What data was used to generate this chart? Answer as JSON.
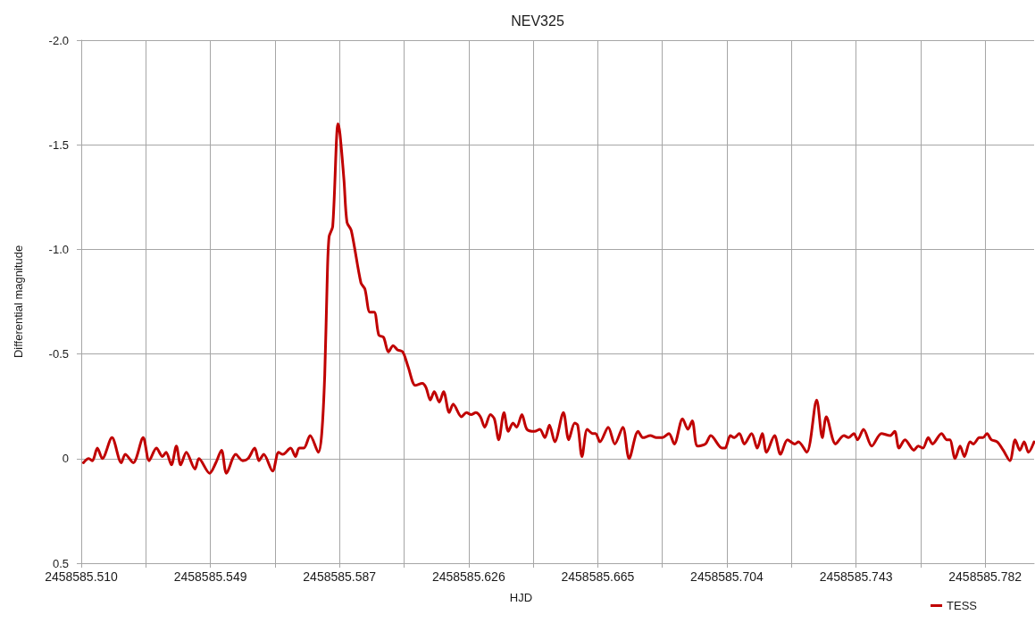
{
  "chart_data": {
    "type": "line",
    "title": "NEV325",
    "xlabel": "HJD",
    "ylabel": "Differential magnitude",
    "xlim": [
      2458585.50965,
      2458585.7967
    ],
    "xticks": [
      {
        "value": 2458585.50965,
        "label": "2458585.510"
      },
      {
        "value": 2458585.5291,
        "label": null
      },
      {
        "value": 2458585.54855,
        "label": "2458585.549"
      },
      {
        "value": 2458585.568,
        "label": null
      },
      {
        "value": 2458585.58745,
        "label": "2458585.587"
      },
      {
        "value": 2458585.6069,
        "label": null
      },
      {
        "value": 2458585.62635,
        "label": "2458585.626"
      },
      {
        "value": 2458585.6458,
        "label": null
      },
      {
        "value": 2458585.66525,
        "label": "2458585.665"
      },
      {
        "value": 2458585.6847,
        "label": null
      },
      {
        "value": 2458585.70415,
        "label": "2458585.704"
      },
      {
        "value": 2458585.7236,
        "label": null
      },
      {
        "value": 2458585.74305,
        "label": "2458585.743"
      },
      {
        "value": 2458585.7625,
        "label": null
      },
      {
        "value": 2458585.78195,
        "label": "2458585.782"
      }
    ],
    "ylim": [
      0.5,
      -2.0
    ],
    "yticks": [
      {
        "value": -2,
        "label": "-2.0"
      },
      -1.5,
      {
        "value": -1,
        "label": "-1.0"
      },
      -0.5,
      0,
      0.5
    ],
    "grid": true,
    "legend": "bottom right",
    "marker": "none",
    "x": [
      2458585.5103,
      2458585.5119,
      2458585.513,
      2458585.5145,
      2458585.516,
      2458585.5189,
      2458585.5217,
      2458585.5229,
      2458585.5253,
      2458585.5283,
      2458585.5301,
      2458585.5323,
      2458585.5341,
      2458585.5352,
      2458585.5368,
      2458585.5383,
      2458585.5396,
      2458585.5413,
      2458585.5439,
      2458585.5451,
      2458585.5483,
      2458585.5502,
      2458585.5519,
      2458585.5534,
      2458585.5562,
      2458585.5583,
      2458585.5599,
      2458585.5619,
      2458585.5632,
      2458585.5646,
      2458585.5673,
      2458585.5691,
      2458585.5704,
      2458585.5727,
      2458585.5742,
      2458585.5753,
      2458585.5767,
      2458585.5786,
      2458585.5811,
      2458585.5821,
      2458585.583,
      2458585.5837,
      2458585.5843,
      2458585.5854,
      2458585.587,
      2458585.5876,
      2458585.5888,
      2458585.5897,
      2458585.591,
      2458585.5939,
      2458585.5951,
      2458585.5966,
      2458585.5979,
      2458585.5993,
      2458585.6007,
      2458585.6022,
      2458585.6036,
      2458585.6049,
      2458585.6065,
      2458585.6081,
      2458585.6103,
      2458585.6124,
      2458585.6135,
      2458585.6148,
      2458585.616,
      2458585.6175,
      2458585.6188,
      2458585.6205,
      2458585.6217,
      2458585.6242,
      2458585.6257,
      2458585.6271,
      2458585.6285,
      2458585.6299,
      2458585.6312,
      2458585.6329,
      2458585.6341,
      2458585.6354,
      2458585.637,
      2458585.6383,
      2458585.6397,
      2458585.6408,
      2458585.6424,
      2458585.6439,
      2458585.6462,
      2458585.6478,
      2458585.6493,
      2458585.6507,
      2458585.6523,
      2458585.6549,
      2458585.6565,
      2458585.6583,
      2458585.6592,
      2458585.6605,
      2458585.6621,
      2458585.6637,
      2458585.6646,
      2458585.6659,
      2458585.6684,
      2458585.6704,
      2458585.6728,
      2458585.6747,
      2458585.6774,
      2458585.6789,
      2458585.6811,
      2458585.6829,
      2458585.6847,
      2458585.6867,
      2458585.6883,
      2458585.6908,
      2458585.6924,
      2458585.6937,
      2458585.6953,
      2458585.6977,
      2458585.6993,
      2458585.7027,
      2458585.7036,
      2458585.7052,
      2458585.7063,
      2458585.7079,
      2458585.7094,
      2458585.7116,
      2458585.7133,
      2458585.7148,
      2458585.7161,
      2458585.7185,
      2458585.7203,
      2458585.7224,
      2458585.7246,
      2458585.7257,
      2458585.7282,
      2458585.7312,
      2458585.7329,
      2458585.7341,
      2458585.7369,
      2458585.7394,
      2458585.7408,
      2458585.7424,
      2458585.7435,
      2458585.7453,
      2458585.7478,
      2458585.7507,
      2458585.7533,
      2458585.7547,
      2458585.756,
      2458585.7578,
      2458585.7605,
      2458585.7618,
      2458585.7632,
      2458585.7648,
      2458585.7661,
      2458585.7688,
      2458585.7704,
      2458585.7713,
      2458585.7729,
      2458585.7744,
      2458585.7757,
      2458585.7774,
      2458585.7784,
      2458585.7802,
      2458585.7813,
      2458585.7825,
      2458585.7838,
      2458585.7856,
      2458585.7874,
      2458585.7894,
      2458585.791,
      2458585.7924,
      2458585.7937,
      2458585.795,
      2458585.7967
    ],
    "series": [
      {
        "name": "TESS",
        "color": "#c00000",
        "values": [
          0.02,
          0.0,
          0.01,
          -0.05,
          0.0,
          -0.1,
          0.02,
          -0.02,
          0.02,
          -0.1,
          0.01,
          -0.05,
          -0.01,
          -0.03,
          0.03,
          -0.06,
          0.03,
          -0.03,
          0.05,
          0.0,
          0.07,
          0.02,
          -0.04,
          0.07,
          -0.02,
          0.01,
          0.0,
          -0.05,
          0.01,
          -0.02,
          0.06,
          -0.03,
          -0.02,
          -0.05,
          -0.01,
          -0.05,
          -0.05,
          -0.11,
          -0.03,
          -0.12,
          -0.4,
          -0.83,
          -1.06,
          -1.11,
          -1.6,
          -1.55,
          -1.33,
          -1.13,
          -1.09,
          -0.84,
          -0.81,
          -0.7,
          -0.7,
          -0.59,
          -0.58,
          -0.51,
          -0.54,
          -0.52,
          -0.51,
          -0.44,
          -0.35,
          -0.36,
          -0.34,
          -0.28,
          -0.32,
          -0.27,
          -0.32,
          -0.22,
          -0.26,
          -0.2,
          -0.22,
          -0.21,
          -0.22,
          -0.2,
          -0.15,
          -0.21,
          -0.19,
          -0.09,
          -0.22,
          -0.13,
          -0.17,
          -0.15,
          -0.21,
          -0.14,
          -0.13,
          -0.14,
          -0.1,
          -0.16,
          -0.08,
          -0.22,
          -0.09,
          -0.17,
          -0.16,
          -0.01,
          -0.14,
          -0.12,
          -0.12,
          -0.08,
          -0.15,
          -0.07,
          -0.15,
          0.0,
          -0.13,
          -0.1,
          -0.11,
          -0.1,
          -0.1,
          -0.12,
          -0.07,
          -0.19,
          -0.14,
          -0.18,
          -0.06,
          -0.07,
          -0.11,
          -0.05,
          -0.05,
          -0.11,
          -0.1,
          -0.12,
          -0.07,
          -0.12,
          -0.05,
          -0.12,
          -0.03,
          -0.11,
          -0.02,
          -0.09,
          -0.07,
          -0.08,
          -0.03,
          -0.28,
          -0.1,
          -0.2,
          -0.07,
          -0.11,
          -0.1,
          -0.12,
          -0.09,
          -0.14,
          -0.06,
          -0.12,
          -0.11,
          -0.13,
          -0.05,
          -0.09,
          -0.04,
          -0.06,
          -0.05,
          -0.1,
          -0.07,
          -0.12,
          -0.09,
          -0.09,
          0.0,
          -0.06,
          -0.01,
          -0.08,
          -0.07,
          -0.1,
          -0.1,
          -0.12,
          -0.09,
          -0.08,
          -0.04,
          0.01,
          -0.09,
          -0.04,
          -0.08,
          -0.03,
          -0.08
        ]
      }
    ]
  }
}
